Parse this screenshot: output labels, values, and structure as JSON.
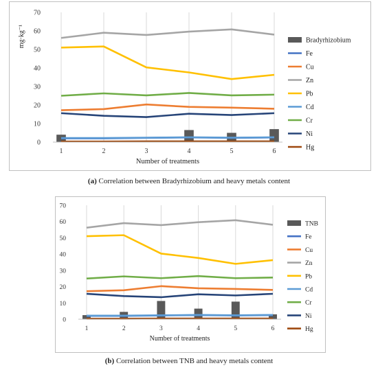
{
  "chart_data": [
    {
      "type": "line",
      "panel": "a",
      "ylabel": "mg·kg⁻¹",
      "xlabel": "Number of treatments",
      "x": [
        "1",
        "2",
        "3",
        "4",
        "5",
        "6"
      ],
      "ylim": [
        0,
        70
      ],
      "yticks": [
        0,
        10,
        20,
        30,
        40,
        50,
        60,
        70
      ],
      "grid": "vertical",
      "legend_position": "right",
      "bar_series": {
        "name": "Bradyrhizobium",
        "color": "#595959",
        "values": [
          4,
          0.6,
          0.6,
          6.5,
          5,
          7
        ]
      },
      "series": [
        {
          "name": "Fe",
          "color": "#4472C4",
          "values": [
            2,
            2,
            2.3,
            2.5,
            2.3,
            2.5
          ]
        },
        {
          "name": "Cu",
          "color": "#ED7D31",
          "values": [
            17.2,
            17.8,
            20.3,
            19,
            18.6,
            18
          ]
        },
        {
          "name": "Zn",
          "color": "#A5A5A5",
          "values": [
            56.2,
            59,
            57.8,
            59.6,
            60.8,
            58
          ]
        },
        {
          "name": "Pb",
          "color": "#FFC000",
          "values": [
            51,
            51.6,
            40.3,
            37.6,
            34,
            36.3
          ]
        },
        {
          "name": "Cd",
          "color": "#5B9BD5",
          "values": [
            2.2,
            2.2,
            2.4,
            2.6,
            2.4,
            2.6
          ]
        },
        {
          "name": "Cr",
          "color": "#70AD47",
          "values": [
            25,
            26.3,
            25.2,
            26.5,
            25.2,
            25.6
          ]
        },
        {
          "name": "Ni",
          "color": "#264478",
          "values": [
            15.6,
            14.2,
            13.5,
            15.3,
            14.6,
            15.6
          ]
        },
        {
          "name": "Hg",
          "color": "#9E480E",
          "values": [
            0.3,
            0.3,
            0.4,
            0.4,
            0.4,
            0.4
          ]
        }
      ]
    },
    {
      "type": "line",
      "panel": "b",
      "ylabel": "mg·kg-1",
      "xlabel": "Number of treatments",
      "x": [
        "1",
        "2",
        "3",
        "4",
        "5",
        "6"
      ],
      "ylim": [
        0,
        70
      ],
      "yticks": [
        0,
        10,
        20,
        30,
        40,
        50,
        60,
        70
      ],
      "grid": "vertical",
      "legend_position": "right",
      "bar_series": {
        "name": "TNB",
        "color": "#595959",
        "values": [
          2.5,
          4.5,
          11.2,
          6.5,
          10.8,
          3
        ]
      },
      "series": [
        {
          "name": "Fe",
          "color": "#4472C4",
          "values": [
            2,
            2,
            2.3,
            2.5,
            2.3,
            2.5
          ]
        },
        {
          "name": "Cu",
          "color": "#ED7D31",
          "values": [
            17.2,
            17.8,
            20.3,
            19,
            18.6,
            18
          ]
        },
        {
          "name": "Zn",
          "color": "#A5A5A5",
          "values": [
            56.2,
            59,
            57.8,
            59.6,
            60.8,
            58
          ]
        },
        {
          "name": "Pb",
          "color": "#FFC000",
          "values": [
            51,
            51.6,
            40.3,
            37.6,
            34,
            36.3
          ]
        },
        {
          "name": "Cd",
          "color": "#5B9BD5",
          "values": [
            2.2,
            2.2,
            2.4,
            2.6,
            2.4,
            2.6
          ]
        },
        {
          "name": "Cr",
          "color": "#70AD47",
          "values": [
            25,
            26.3,
            25.2,
            26.5,
            25.2,
            25.6
          ]
        },
        {
          "name": "Ni",
          "color": "#264478",
          "values": [
            15.6,
            14.2,
            13.5,
            15.3,
            14.6,
            15.6
          ]
        },
        {
          "name": "Hg",
          "color": "#9E480E",
          "values": [
            0.3,
            0.3,
            0.4,
            0.4,
            0.4,
            0.4
          ]
        }
      ]
    }
  ],
  "captions": {
    "a": {
      "tag": "(a)",
      "text": " Correlation between Bradyrhizobium and heavy metals content"
    },
    "b": {
      "tag": "(b)",
      "text": " Correlation between TNB and heavy metals content"
    }
  }
}
